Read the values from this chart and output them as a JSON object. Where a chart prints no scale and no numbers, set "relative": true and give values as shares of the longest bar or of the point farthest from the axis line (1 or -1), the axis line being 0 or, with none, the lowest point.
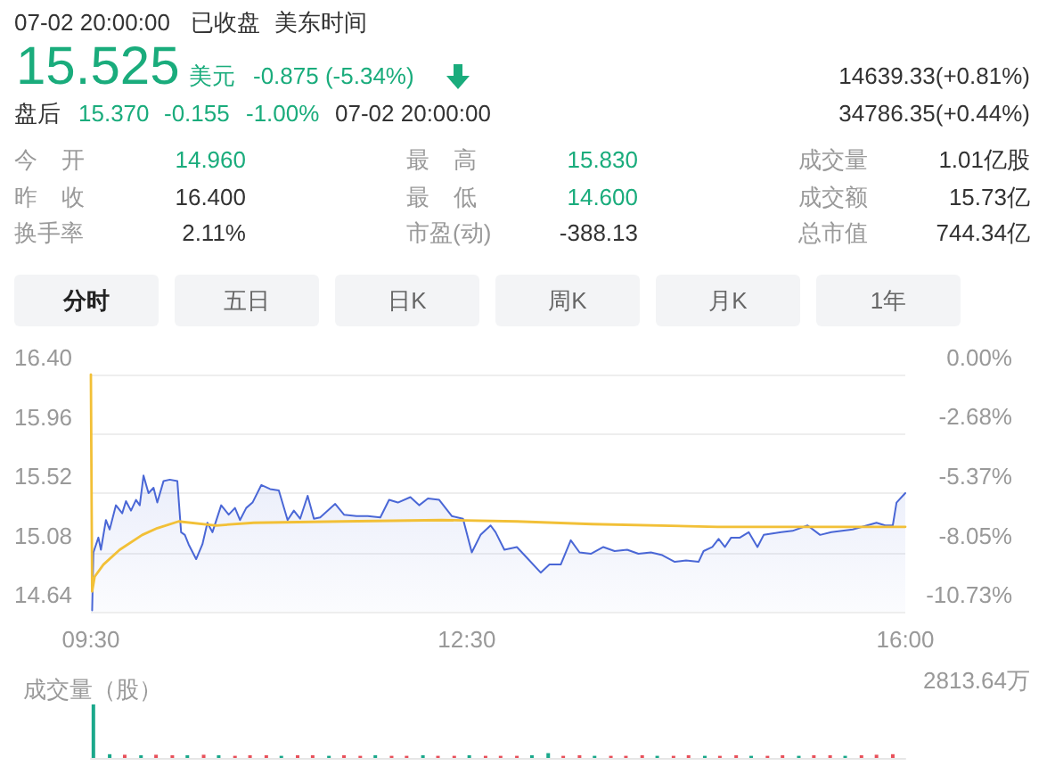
{
  "chart_data": [
    {
      "type": "other",
      "annotations": [
        "07-02 20:00:00",
        "已收盘",
        "美东时间",
        "15.525",
        "美元",
        "-0.875 (-5.34%)",
        "14639.33(+0.81%)",
        "盘后",
        "15.370",
        "-0.155",
        "-1.00%",
        "07-02 20:00:00",
        "34786.35(+0.44%)",
        "今 开",
        "14.960",
        "最 高",
        "15.830",
        "成交量",
        "1.01亿股",
        "昨 收",
        "16.400",
        "最 低",
        "14.600",
        "成交额",
        "15.73亿",
        "换手率",
        "2.11%",
        "市盈(动)",
        "-388.13",
        "总市值",
        "744.34亿",
        "分时",
        "五日",
        "日K",
        "周K",
        "月K",
        "1年"
      ]
    },
    {
      "type": "line",
      "series": [
        {
          "type": "area",
          "color": "#4a67d6",
          "x": [
            9.51,
            9.52,
            9.56,
            9.58,
            9.62,
            9.65,
            9.7,
            9.75,
            9.78,
            9.82,
            9.86,
            9.89,
            9.92,
            9.96,
            10.0,
            10.03,
            10.08,
            10.13,
            10.19,
            10.22,
            10.25,
            10.28,
            10.34,
            10.39,
            10.43,
            10.47,
            10.54,
            10.6,
            10.65,
            10.69,
            10.74,
            10.79,
            10.86,
            10.93,
            11.0,
            11.07,
            11.12,
            11.17,
            11.23,
            11.28,
            11.33,
            11.45,
            11.52,
            11.62,
            11.71,
            11.81,
            11.88,
            11.95,
            12.05,
            12.12,
            12.19,
            12.28,
            12.38,
            12.47,
            12.54,
            12.61,
            12.69,
            12.73,
            12.8,
            12.9,
            12.97,
            13.09,
            13.16,
            13.25,
            13.33,
            13.4,
            13.49,
            13.59,
            13.68,
            13.78,
            13.87,
            13.97,
            14.06,
            14.16,
            14.25,
            14.35,
            14.39,
            14.46,
            14.51,
            14.56,
            14.61,
            14.68,
            14.75,
            14.82,
            14.87,
            15.01,
            15.1,
            15.22,
            15.32,
            15.41,
            15.58,
            15.77,
            15.84,
            15.9,
            15.93,
            15.98,
            16.0
          ],
          "values": [
            14.65,
            15.08,
            15.19,
            15.1,
            15.32,
            15.25,
            15.43,
            15.37,
            15.46,
            15.39,
            15.47,
            15.43,
            15.65,
            15.52,
            15.56,
            15.45,
            15.61,
            15.62,
            15.61,
            15.23,
            15.21,
            15.14,
            15.03,
            15.14,
            15.3,
            15.23,
            15.43,
            15.36,
            15.41,
            15.32,
            15.41,
            15.45,
            15.58,
            15.55,
            15.54,
            15.32,
            15.39,
            15.33,
            15.5,
            15.33,
            15.34,
            15.44,
            15.36,
            15.35,
            15.35,
            15.34,
            15.47,
            15.45,
            15.49,
            15.43,
            15.48,
            15.47,
            15.35,
            15.33,
            15.08,
            15.21,
            15.28,
            15.23,
            15.1,
            15.12,
            15.05,
            14.93,
            14.99,
            14.99,
            15.17,
            15.08,
            15.07,
            15.12,
            15.09,
            15.1,
            15.07,
            15.08,
            15.06,
            15.01,
            15.02,
            15.01,
            15.09,
            15.12,
            15.18,
            15.12,
            15.19,
            15.19,
            15.23,
            15.12,
            15.21,
            15.23,
            15.24,
            15.28,
            15.21,
            15.23,
            15.25,
            15.3,
            15.28,
            15.28,
            15.45,
            15.5,
            15.52
          ]
        },
        {
          "type": "line",
          "color": "#f2c037",
          "x": [
            9.5,
            9.51,
            9.53,
            9.6,
            9.73,
            9.91,
            10.03,
            10.2,
            10.5,
            10.8,
            11.5,
            12.3,
            12.9,
            13.5,
            14.5,
            15.5,
            16
          ],
          "values": [
            16.4,
            14.79,
            14.9,
            14.99,
            15.1,
            15.21,
            15.26,
            15.31,
            15.28,
            15.3,
            15.31,
            15.32,
            15.31,
            15.29,
            15.27,
            15.27,
            15.27
          ]
        }
      ],
      "xlim": [
        9.5,
        16
      ],
      "xticks": [
        {
          "value": 9.5,
          "label": "09:30"
        },
        {
          "value": 12.5,
          "label": "12:30"
        },
        {
          "value": 16,
          "label": "16:00"
        }
      ],
      "ylim": [
        14.64,
        16.4
      ],
      "yticks": [
        14.64,
        15.08,
        15.52,
        15.96,
        {
          "value": 16.4,
          "label": "16.40"
        }
      ],
      "y2lim": [
        -10.73,
        0
      ],
      "y2ticks": [
        {
          "value": -10.73,
          "label": "-10.73%"
        },
        {
          "value": -8.05,
          "label": "-8.05%"
        },
        {
          "value": -5.37,
          "label": "-5.37%"
        },
        {
          "value": -2.68,
          "label": "-2.68%"
        },
        {
          "value": 0,
          "label": "0.00%"
        }
      ],
      "grid": "y"
    },
    {
      "type": "bar",
      "title": "成交量（股）",
      "annotations": [
        "2813.64万"
      ],
      "relative": true,
      "tick_labels": false,
      "xlim": [
        9.5,
        16
      ],
      "x": [
        9.52,
        9.65,
        9.77,
        9.9,
        10.02,
        10.15,
        10.27,
        10.4,
        10.52,
        10.65,
        10.77,
        10.9,
        11.02,
        11.15,
        11.27,
        11.4,
        11.52,
        11.65,
        11.77,
        11.9,
        12.02,
        12.15,
        12.27,
        12.4,
        12.52,
        12.65,
        12.77,
        12.9,
        13.02,
        13.15,
        13.27,
        13.4,
        13.52,
        13.65,
        13.77,
        13.9,
        14.02,
        14.15,
        14.27,
        14.4,
        14.52,
        14.65,
        14.77,
        14.9,
        15.02,
        15.15,
        15.27,
        15.4,
        15.52,
        15.65,
        15.77,
        15.9
      ],
      "values": [
        1,
        0.07,
        0.06,
        0.05,
        0.06,
        0.05,
        0.05,
        0.06,
        0.05,
        0.04,
        0.05,
        0.05,
        0.04,
        0.05,
        0.05,
        0.04,
        0.05,
        0.04,
        0.05,
        0.04,
        0.04,
        0.05,
        0.04,
        0.04,
        0.05,
        0.04,
        0.04,
        0.04,
        0.05,
        0.09,
        0.04,
        0.05,
        0.04,
        0.04,
        0.04,
        0.05,
        0.04,
        0.04,
        0.05,
        0.04,
        0.04,
        0.05,
        0.04,
        0.04,
        0.05,
        0.04,
        0.05,
        0.05,
        0.04,
        0.05,
        0.06,
        0.07
      ],
      "colors": [
        "#1aa88b",
        "#1aa88b",
        "#e8505a",
        "#1aa88b",
        "#e8505a",
        "#e8505a",
        "#1aa88b",
        "#e8505a",
        "#1aa88b",
        "#e8505a",
        "#e8505a",
        "#e8505a",
        "#1aa88b",
        "#e8505a",
        "#e8505a",
        "#1aa88b",
        "#e8505a",
        "#e8505a",
        "#1aa88b",
        "#e8505a",
        "#e8505a",
        "#1aa88b",
        "#e8505a",
        "#e8505a",
        "#1aa88b",
        "#e8505a",
        "#e8505a",
        "#e8505a",
        "#1aa88b",
        "#1aa88b",
        "#e8505a",
        "#e8505a",
        "#1aa88b",
        "#e8505a",
        "#e8505a",
        "#e8505a",
        "#1aa88b",
        "#e8505a",
        "#e8505a",
        "#1aa88b",
        "#e8505a",
        "#e8505a",
        "#1aa88b",
        "#e8505a",
        "#e8505a",
        "#1aa88b",
        "#e8505a",
        "#e8505a",
        "#1aa88b",
        "#e8505a",
        "#e8505a",
        "#e8505a"
      ]
    }
  ]
}
